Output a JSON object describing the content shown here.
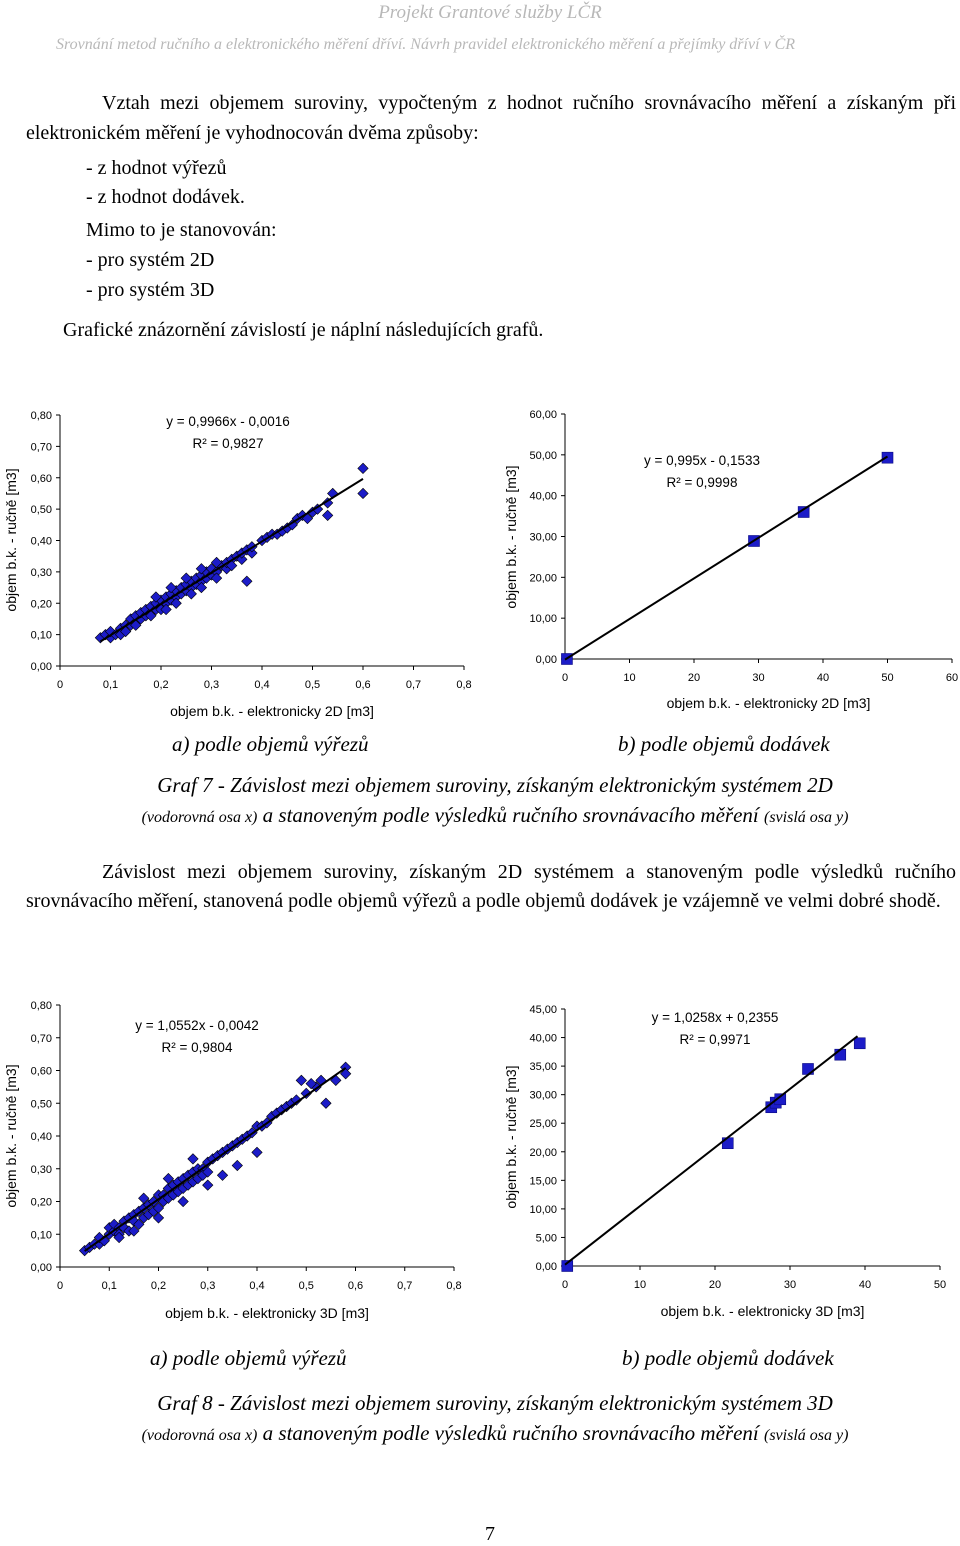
{
  "header": {
    "project": "Projekt Grantové služby LČR",
    "subtitle": "Srovnání metod ručního a elektronického měření dříví. Návrh pravidel elektronického měření a přejímky dříví v ČR"
  },
  "intro": {
    "paragraph": "Vztah mezi objemem suroviny, vypočteným z hodnot ručního srovnávacího měření a získaným při elektronickém měření je vyhodnocován dvěma způsoby:",
    "items1": [
      "-   z hodnot výřezů",
      "-   z hodnot dodávek."
    ],
    "mimo": "Mimo to je stanovován:",
    "items2": [
      "-   pro systém 2D",
      "-   pro systém 3D"
    ],
    "graficke": "Grafické znázornění závislostí je náplní následujících grafů."
  },
  "figure7": {
    "sub_a": "a) podle objemů výřezů",
    "sub_b": "b) podle objemů dodávek",
    "caption_main": "Graf 7 - Závislost mezi objemem suroviny, získaným elektronickým systémem 2D",
    "caption_x": "(vodorovná osa x)",
    "caption_mid": " a stanoveným podle výsledků ručního srovnávacího měření ",
    "caption_y": "(svislá osa y)"
  },
  "body_paragraph": "Závislost mezi objemem suroviny, získaným 2D systémem a stanoveným podle výsledků ručního srovnávacího měření, stanovená podle objemů výřezů a podle objemů dodávek je vzájemně ve velmi dobré shodě.",
  "figure8": {
    "sub_a": "a)  podle objemů výřezů",
    "sub_b": "b)  podle objemů dodávek",
    "caption_main": "Graf 8 - Závislost mezi objemem suroviny, získaným elektronickým systémem 3D",
    "caption_x": "(vodorovná osa x)",
    "caption_mid": " a stanoveným podle výsledků ručního srovnávacího měření ",
    "caption_y": "(svislá osa y)"
  },
  "page_number": "7",
  "chart_data": [
    {
      "type": "scatter",
      "xlabel": "objem b.k. - elektronicky 2D [m3]",
      "ylabel": "objem b.k. - ručně [m3]",
      "equation": "y = 0,9966x - 0,0016",
      "r2": "R² = 0,9827",
      "xlim": [
        0,
        0.8
      ],
      "ylim": [
        0,
        0.8
      ],
      "x_ticks": [
        "0",
        "0,1",
        "0,2",
        "0,3",
        "0,4",
        "0,5",
        "0,6",
        "0,7",
        "0,8"
      ],
      "y_ticks": [
        "0,00",
        "0,10",
        "0,20",
        "0,30",
        "0,40",
        "0,50",
        "0,60",
        "0,70",
        "0,80"
      ],
      "trend": {
        "slope": 0.9966,
        "intercept": -0.0016,
        "x_range": [
          0.08,
          0.6
        ]
      },
      "marker": "diamond",
      "marker_color": "#1c1cc8",
      "points": [
        [
          0.08,
          0.09
        ],
        [
          0.09,
          0.1
        ],
        [
          0.1,
          0.09
        ],
        [
          0.1,
          0.11
        ],
        [
          0.11,
          0.1
        ],
        [
          0.12,
          0.12
        ],
        [
          0.12,
          0.1
        ],
        [
          0.13,
          0.13
        ],
        [
          0.13,
          0.11
        ],
        [
          0.14,
          0.13
        ],
        [
          0.14,
          0.15
        ],
        [
          0.15,
          0.14
        ],
        [
          0.15,
          0.16
        ],
        [
          0.16,
          0.15
        ],
        [
          0.16,
          0.17
        ],
        [
          0.17,
          0.16
        ],
        [
          0.17,
          0.18
        ],
        [
          0.18,
          0.17
        ],
        [
          0.18,
          0.19
        ],
        [
          0.19,
          0.18
        ],
        [
          0.19,
          0.2
        ],
        [
          0.2,
          0.19
        ],
        [
          0.2,
          0.21
        ],
        [
          0.2,
          0.18
        ],
        [
          0.21,
          0.2
        ],
        [
          0.21,
          0.22
        ],
        [
          0.22,
          0.21
        ],
        [
          0.22,
          0.23
        ],
        [
          0.23,
          0.22
        ],
        [
          0.23,
          0.24
        ],
        [
          0.24,
          0.23
        ],
        [
          0.24,
          0.25
        ],
        [
          0.25,
          0.24
        ],
        [
          0.25,
          0.26
        ],
        [
          0.26,
          0.25
        ],
        [
          0.26,
          0.27
        ],
        [
          0.27,
          0.26
        ],
        [
          0.27,
          0.28
        ],
        [
          0.28,
          0.27
        ],
        [
          0.28,
          0.29
        ],
        [
          0.29,
          0.28
        ],
        [
          0.29,
          0.3
        ],
        [
          0.3,
          0.29
        ],
        [
          0.3,
          0.31
        ],
        [
          0.31,
          0.3
        ],
        [
          0.32,
          0.32
        ],
        [
          0.33,
          0.31
        ],
        [
          0.33,
          0.33
        ],
        [
          0.34,
          0.34
        ],
        [
          0.35,
          0.35
        ],
        [
          0.36,
          0.34
        ],
        [
          0.36,
          0.36
        ],
        [
          0.37,
          0.37
        ],
        [
          0.38,
          0.36
        ],
        [
          0.38,
          0.38
        ],
        [
          0.37,
          0.27
        ],
        [
          0.4,
          0.4
        ],
        [
          0.41,
          0.41
        ],
        [
          0.42,
          0.42
        ],
        [
          0.43,
          0.42
        ],
        [
          0.44,
          0.43
        ],
        [
          0.45,
          0.44
        ],
        [
          0.46,
          0.45
        ],
        [
          0.47,
          0.47
        ],
        [
          0.48,
          0.48
        ],
        [
          0.49,
          0.47
        ],
        [
          0.5,
          0.49
        ],
        [
          0.51,
          0.5
        ],
        [
          0.53,
          0.52
        ],
        [
          0.53,
          0.48
        ],
        [
          0.54,
          0.55
        ],
        [
          0.6,
          0.63
        ],
        [
          0.6,
          0.55
        ],
        [
          0.15,
          0.13
        ],
        [
          0.18,
          0.16
        ],
        [
          0.21,
          0.18
        ],
        [
          0.23,
          0.2
        ],
        [
          0.26,
          0.23
        ],
        [
          0.28,
          0.25
        ],
        [
          0.31,
          0.28
        ],
        [
          0.34,
          0.32
        ],
        [
          0.19,
          0.22
        ],
        [
          0.22,
          0.25
        ],
        [
          0.25,
          0.28
        ],
        [
          0.28,
          0.31
        ],
        [
          0.31,
          0.33
        ]
      ]
    },
    {
      "type": "scatter",
      "xlabel": "objem b.k. - elektronicky 2D [m3]",
      "ylabel": "objem b.k. - ručně [m3]",
      "equation": "y = 0,995x - 0,1533",
      "r2": "R² = 0,9998",
      "xlim": [
        0,
        60
      ],
      "ylim": [
        0,
        60
      ],
      "x_ticks": [
        "0",
        "10",
        "20",
        "30",
        "40",
        "50",
        "60"
      ],
      "y_ticks": [
        "0,00",
        "10,00",
        "20,00",
        "30,00",
        "40,00",
        "50,00",
        "60,00"
      ],
      "trend": {
        "slope": 0.995,
        "intercept": -0.1533,
        "x_range": [
          0,
          50
        ]
      },
      "marker": "square",
      "marker_color": "#1c1cc8",
      "points": [
        [
          0.3,
          0
        ],
        [
          29.3,
          28.9
        ],
        [
          37,
          36
        ],
        [
          50,
          49.3
        ]
      ]
    },
    {
      "type": "scatter",
      "xlabel": "objem b.k. - elektronicky 3D [m3]",
      "ylabel": "objem b.k. - ručně [m3]",
      "equation": "y = 1,0552x - 0,0042",
      "r2": "R² = 0,9804",
      "xlim": [
        0,
        0.8
      ],
      "ylim": [
        0,
        0.8
      ],
      "x_ticks": [
        "0",
        "0,1",
        "0,2",
        "0,3",
        "0,4",
        "0,5",
        "0,6",
        "0,7",
        "0,8"
      ],
      "y_ticks": [
        "0,00",
        "0,10",
        "0,20",
        "0,30",
        "0,40",
        "0,50",
        "0,60",
        "0,70",
        "0,80"
      ],
      "trend": {
        "slope": 1.0552,
        "intercept": -0.0042,
        "x_range": [
          0.05,
          0.58
        ]
      },
      "marker": "diamond",
      "marker_color": "#1c1cc8",
      "points": [
        [
          0.05,
          0.05
        ],
        [
          0.06,
          0.06
        ],
        [
          0.07,
          0.07
        ],
        [
          0.08,
          0.07
        ],
        [
          0.08,
          0.09
        ],
        [
          0.09,
          0.08
        ],
        [
          0.1,
          0.1
        ],
        [
          0.1,
          0.12
        ],
        [
          0.11,
          0.11
        ],
        [
          0.11,
          0.13
        ],
        [
          0.12,
          0.12
        ],
        [
          0.12,
          0.1
        ],
        [
          0.13,
          0.14
        ],
        [
          0.13,
          0.12
        ],
        [
          0.14,
          0.15
        ],
        [
          0.14,
          0.11
        ],
        [
          0.15,
          0.16
        ],
        [
          0.15,
          0.14
        ],
        [
          0.16,
          0.17
        ],
        [
          0.16,
          0.13
        ],
        [
          0.17,
          0.18
        ],
        [
          0.17,
          0.15
        ],
        [
          0.18,
          0.19
        ],
        [
          0.18,
          0.16
        ],
        [
          0.19,
          0.2
        ],
        [
          0.19,
          0.17
        ],
        [
          0.2,
          0.22
        ],
        [
          0.2,
          0.18
        ],
        [
          0.21,
          0.22
        ],
        [
          0.21,
          0.2
        ],
        [
          0.22,
          0.24
        ],
        [
          0.22,
          0.21
        ],
        [
          0.23,
          0.25
        ],
        [
          0.23,
          0.22
        ],
        [
          0.24,
          0.26
        ],
        [
          0.24,
          0.23
        ],
        [
          0.25,
          0.27
        ],
        [
          0.25,
          0.24
        ],
        [
          0.26,
          0.28
        ],
        [
          0.26,
          0.25
        ],
        [
          0.27,
          0.29
        ],
        [
          0.27,
          0.26
        ],
        [
          0.28,
          0.3
        ],
        [
          0.28,
          0.27
        ],
        [
          0.29,
          0.3
        ],
        [
          0.29,
          0.28
        ],
        [
          0.3,
          0.32
        ],
        [
          0.3,
          0.29
        ],
        [
          0.31,
          0.33
        ],
        [
          0.32,
          0.34
        ],
        [
          0.33,
          0.35
        ],
        [
          0.34,
          0.36
        ],
        [
          0.35,
          0.37
        ],
        [
          0.36,
          0.38
        ],
        [
          0.37,
          0.39
        ],
        [
          0.38,
          0.4
        ],
        [
          0.39,
          0.41
        ],
        [
          0.4,
          0.43
        ],
        [
          0.41,
          0.43
        ],
        [
          0.42,
          0.44
        ],
        [
          0.43,
          0.46
        ],
        [
          0.44,
          0.47
        ],
        [
          0.45,
          0.48
        ],
        [
          0.46,
          0.49
        ],
        [
          0.47,
          0.5
        ],
        [
          0.48,
          0.51
        ],
        [
          0.5,
          0.53
        ],
        [
          0.52,
          0.55
        ],
        [
          0.51,
          0.56
        ],
        [
          0.49,
          0.57
        ],
        [
          0.53,
          0.57
        ],
        [
          0.58,
          0.61
        ],
        [
          0.58,
          0.59
        ],
        [
          0.56,
          0.57
        ],
        [
          0.54,
          0.5
        ],
        [
          0.12,
          0.09
        ],
        [
          0.15,
          0.11
        ],
        [
          0.2,
          0.15
        ],
        [
          0.25,
          0.2
        ],
        [
          0.3,
          0.25
        ],
        [
          0.33,
          0.28
        ],
        [
          0.36,
          0.31
        ],
        [
          0.4,
          0.35
        ],
        [
          0.17,
          0.21
        ],
        [
          0.22,
          0.27
        ],
        [
          0.27,
          0.33
        ]
      ]
    },
    {
      "type": "scatter",
      "xlabel": "objem b.k. - elektronicky 3D [m3]",
      "ylabel": "objem b.k. - ručně [m3]",
      "equation": "y = 1,0258x + 0,2355",
      "r2": "R² = 0,9971",
      "xlim": [
        0,
        50
      ],
      "ylim": [
        0,
        45
      ],
      "x_ticks": [
        "0",
        "10",
        "20",
        "30",
        "40",
        "50"
      ],
      "y_ticks": [
        "0,00",
        "5,00",
        "10,00",
        "15,00",
        "20,00",
        "25,00",
        "30,00",
        "35,00",
        "40,00",
        "45,00"
      ],
      "trend": {
        "slope": 1.0258,
        "intercept": 0.2355,
        "x_range": [
          0,
          39
        ]
      },
      "marker": "square",
      "marker_color": "#1c1cc8",
      "points": [
        [
          0.3,
          0
        ],
        [
          21.7,
          21.5
        ],
        [
          27.5,
          27.8
        ],
        [
          28.1,
          28.6
        ],
        [
          28.7,
          29.2
        ],
        [
          32.4,
          34.5
        ],
        [
          36.7,
          37
        ],
        [
          39.3,
          39
        ]
      ]
    }
  ]
}
